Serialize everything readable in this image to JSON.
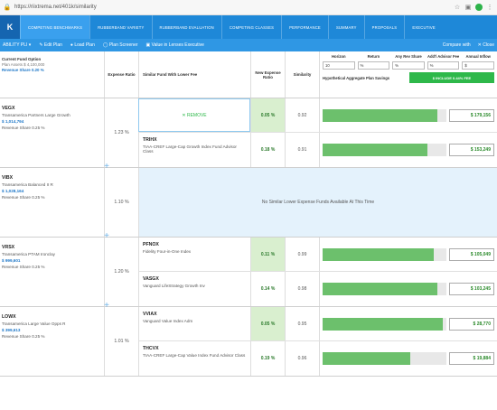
{
  "browser": {
    "url": "https://riixtrema.net/401k/similarity"
  },
  "nav": {
    "logo": "K",
    "tabs": [
      {
        "label": "COMPETING BENCHMARKS",
        "active": true
      },
      {
        "label": "RUBBERBAND VARIETY",
        "active": false
      },
      {
        "label": "RUBBERBAND EVALUATION",
        "active": false
      },
      {
        "label": "COMPETING CLASSES",
        "active": false
      },
      {
        "label": "PERFORMANCE",
        "active": false
      },
      {
        "label": "SUMMARY",
        "active": false
      },
      {
        "label": "PROPOSALS",
        "active": false
      },
      {
        "label": "EXECUTIVE",
        "active": false
      }
    ]
  },
  "toolbar": {
    "plan": "ABILITY PLI ▾",
    "edit": "✎ Edit Plan",
    "load": "● Load Plan",
    "screener": "◯ Plan Screener",
    "value": "▣ Value in Lenses Executive",
    "compare": "Compare with",
    "close": "✕ Close"
  },
  "header": {
    "current": "Current Fund Option",
    "current_sub": "Plan Assets $ 4,100,000",
    "revenue": "Revenue Share 0.20 %",
    "expense_ratio": "Expense Ratio",
    "similar": "Similar Fund With Lower Fee",
    "new_expense": "New Expense Ratio",
    "similarity": "Similarity",
    "form_labels": [
      "Horizon",
      "Return",
      "Any Rev Share",
      "Add'l Advisor Fee",
      "Annual Inflow"
    ],
    "form_values": [
      "10",
      "%",
      "%",
      "%",
      "$"
    ],
    "hypothetical": "Hypothetical Aggregate Plan Savings",
    "hyp_btn": "$ INCLUDE 0.44% FEE"
  },
  "groups": [
    {
      "ticker": "VEGX",
      "name": "Transamerica Partners Large Growth",
      "amount": "$ 1,014,794",
      "rev": "Revenue Share 0.25 %",
      "ratio": "1.23 %",
      "funds": [
        {
          "remove": true,
          "remove_label": "✕ REMOVE",
          "er": "0.05 %",
          "er_green": true,
          "sim": "0.92",
          "bar": 0.93,
          "val": "$ 179,156"
        },
        {
          "remove": false,
          "ticker": "TRIHX",
          "name": "TIAA-CREF Large-Cap Growth Index Fund Advisor Class",
          "er": "0.18 %",
          "er_green": false,
          "sim": "0.91",
          "bar": 0.85,
          "val": "$ 153,249"
        }
      ]
    },
    {
      "ticker": "VIBX",
      "name": "Transamerica Balanced II R",
      "amount": "$ 1,028,164",
      "rev": "Revenue Share 0.25 %",
      "ratio": "1.10 %",
      "empty": "No Similar Lower Expense Funds Available At This Time",
      "funds": []
    },
    {
      "ticker": "VRSX",
      "name": "Transamerica PTAM Ironclay",
      "amount": "$ 999,601",
      "rev": "Revenue Share 0.25 %",
      "ratio": "1.20 %",
      "funds": [
        {
          "remove": false,
          "ticker": "PFNOX",
          "name": "Fidelity Four-in-One Index",
          "er": "0.11 %",
          "er_green": true,
          "sim": "0.99",
          "bar": 0.9,
          "val": "$ 105,049"
        },
        {
          "remove": false,
          "ticker": "VASGX",
          "name": "Vanguard LifeStrategy Growth Inv",
          "er": "0.14 %",
          "er_green": false,
          "sim": "0.98",
          "bar": 0.93,
          "val": "$ 103,245"
        }
      ]
    },
    {
      "ticker": "LOWX",
      "name": "Transamerica Large Value Opps R",
      "amount": "$ 399,613",
      "rev": "Revenue Share 0.25 %",
      "ratio": "1.01 %",
      "funds": [
        {
          "remove": false,
          "ticker": "VVIAX",
          "name": "Vanguard Value Index Adm",
          "er": "0.05 %",
          "er_green": true,
          "sim": "0.95",
          "bar": 0.97,
          "val": "$ 28,770"
        },
        {
          "remove": false,
          "ticker": "THCVX",
          "name": "TIAA-CREF Large-Cap Value Index Fund Advisor Class",
          "er": "0.19 %",
          "er_green": false,
          "sim": "0.96",
          "bar": 0.71,
          "val": "$ 19,884"
        }
      ]
    }
  ]
}
